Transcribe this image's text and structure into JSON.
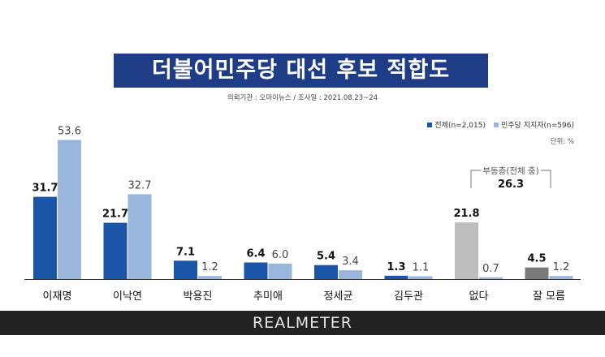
{
  "title": "더불어민주당 대선 후보 적합도",
  "source_text": "의뢰기관 : 오마이뉴스  /  조사일 : 2021.08.23~24",
  "legend": {
    "all": "전체(n=2,015)",
    "supporters": "민주당 지지자(n=596)"
  },
  "unit_text": "단위: %",
  "annotation": {
    "label": "부동층(전체 중)",
    "value": "26.3"
  },
  "brand": "REALMETER",
  "colors": {
    "all": "#1a55a8",
    "supporters": "#9ab6dd",
    "none_all": "#bdbdbd",
    "unsure_all": "#7a7a7a"
  },
  "chart_data": {
    "type": "bar",
    "categories": [
      "이재명",
      "이낙연",
      "박용진",
      "추미애",
      "정세균",
      "김두관",
      "없다",
      "잘 모름"
    ],
    "series": [
      {
        "name": "전체(n=2,015)",
        "values": [
          31.7,
          21.7,
          7.1,
          6.4,
          5.4,
          1.3,
          21.8,
          4.5
        ]
      },
      {
        "name": "민주당 지지자(n=596)",
        "values": [
          53.6,
          32.7,
          1.2,
          6.0,
          3.4,
          1.1,
          0.7,
          1.2
        ]
      }
    ],
    "value_labels": [
      [
        "31.7",
        "21.7",
        "7.1",
        "6.4",
        "5.4",
        "1.3",
        "21.8",
        "4.5"
      ],
      [
        "53.6",
        "32.7",
        "1.2",
        "6.0",
        "3.4",
        "1.1",
        "0.7",
        "1.2"
      ]
    ]
  }
}
